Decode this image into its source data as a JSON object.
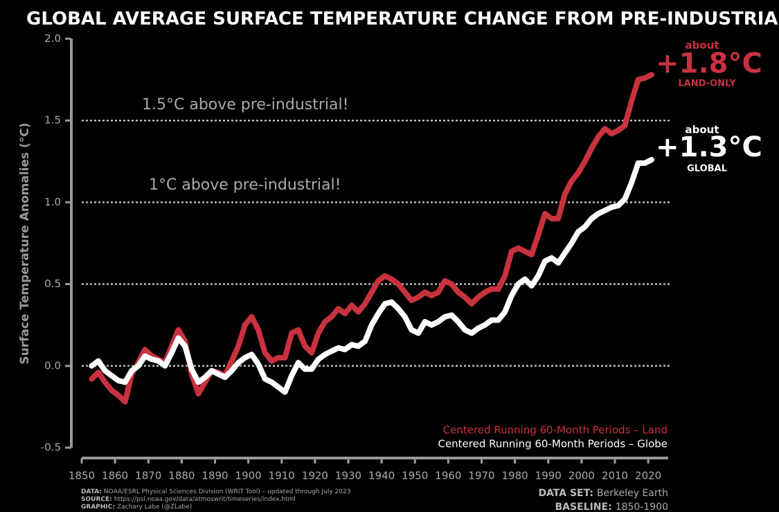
{
  "chart_data": {
    "type": "line",
    "title": "GLOBAL AVERAGE SURFACE TEMPERATURE CHANGE FROM PRE-INDUSTRIAL",
    "y_label": "Surface Temperature Anomalies (°C)",
    "xlim": [
      1850,
      2026
    ],
    "xticks": [
      1850,
      1860,
      1870,
      1880,
      1890,
      1900,
      1910,
      1920,
      1930,
      1940,
      1950,
      1960,
      1970,
      1980,
      1990,
      2000,
      2010,
      2020
    ],
    "ylim": [
      -0.5,
      2.0
    ],
    "yticks": [
      -0.5,
      {
        "value": 0,
        "label": "0.0"
      },
      0.5,
      {
        "value": 1,
        "label": "1.0"
      },
      1.5,
      {
        "value": 2,
        "label": "2.0"
      }
    ],
    "grid": true,
    "annotations": [
      "1.5°C above pre-industrial!",
      "1°C above pre-industrial!"
    ],
    "end_labels": [
      {
        "prefix": "about",
        "value": "+1.8°C",
        "note": "LAND-ONLY"
      },
      {
        "prefix": "about",
        "value": "+1.3°C",
        "note": "GLOBAL"
      }
    ],
    "x": [
      1853,
      1855,
      1857,
      1859,
      1861,
      1863,
      1865,
      1867,
      1869,
      1871,
      1873,
      1875,
      1877,
      1879,
      1881,
      1883,
      1885,
      1887,
      1889,
      1891,
      1893,
      1895,
      1897,
      1899,
      1901,
      1903,
      1905,
      1907,
      1909,
      1911,
      1913,
      1915,
      1917,
      1919,
      1921,
      1923,
      1925,
      1927,
      1929,
      1931,
      1933,
      1935,
      1937,
      1939,
      1941,
      1943,
      1945,
      1947,
      1949,
      1951,
      1953,
      1955,
      1957,
      1959,
      1961,
      1963,
      1965,
      1967,
      1969,
      1971,
      1973,
      1975,
      1977,
      1979,
      1981,
      1983,
      1985,
      1987,
      1989,
      1991,
      1993,
      1995,
      1997,
      1999,
      2001,
      2003,
      2005,
      2007,
      2009,
      2011,
      2013,
      2015,
      2017,
      2019,
      2021
    ],
    "series": [
      {
        "name": "Centered Running 60-Month Periods – Land",
        "color": "#c8323f",
        "values": [
          -0.08,
          -0.04,
          -0.1,
          -0.15,
          -0.18,
          -0.22,
          -0.05,
          0.02,
          0.1,
          0.06,
          0.04,
          0.02,
          0.12,
          0.22,
          0.15,
          -0.05,
          -0.17,
          -0.1,
          -0.03,
          -0.04,
          -0.06,
          0.03,
          0.12,
          0.25,
          0.3,
          0.22,
          0.08,
          0.03,
          0.05,
          0.05,
          0.2,
          0.22,
          0.12,
          0.08,
          0.2,
          0.27,
          0.3,
          0.35,
          0.32,
          0.37,
          0.33,
          0.38,
          0.45,
          0.52,
          0.55,
          0.53,
          0.5,
          0.45,
          0.4,
          0.42,
          0.45,
          0.43,
          0.45,
          0.52,
          0.5,
          0.45,
          0.42,
          0.38,
          0.42,
          0.45,
          0.47,
          0.47,
          0.55,
          0.7,
          0.72,
          0.7,
          0.68,
          0.8,
          0.93,
          0.9,
          0.9,
          1.05,
          1.13,
          1.18,
          1.25,
          1.33,
          1.4,
          1.45,
          1.42,
          1.44,
          1.47,
          1.62,
          1.75,
          1.76,
          1.78
        ]
      },
      {
        "name": "Centered Running 60-Month Periods – Globe",
        "color": "#ffffff",
        "values": [
          0.0,
          0.03,
          -0.03,
          -0.06,
          -0.09,
          -0.1,
          -0.03,
          0.0,
          0.06,
          0.04,
          0.03,
          0.0,
          0.08,
          0.17,
          0.12,
          -0.02,
          -0.1,
          -0.07,
          -0.03,
          -0.05,
          -0.07,
          -0.03,
          0.02,
          0.05,
          0.07,
          0.01,
          -0.08,
          -0.1,
          -0.13,
          -0.16,
          -0.06,
          0.02,
          -0.02,
          -0.02,
          0.04,
          0.07,
          0.09,
          0.11,
          0.1,
          0.13,
          0.12,
          0.15,
          0.25,
          0.32,
          0.38,
          0.39,
          0.35,
          0.3,
          0.22,
          0.2,
          0.27,
          0.25,
          0.27,
          0.3,
          0.31,
          0.27,
          0.22,
          0.2,
          0.23,
          0.25,
          0.28,
          0.28,
          0.33,
          0.43,
          0.5,
          0.53,
          0.49,
          0.55,
          0.64,
          0.66,
          0.63,
          0.69,
          0.75,
          0.82,
          0.85,
          0.9,
          0.93,
          0.95,
          0.97,
          0.98,
          1.02,
          1.12,
          1.24,
          1.24,
          1.26
        ]
      }
    ],
    "footer_left": [
      {
        "label": "DATA:",
        "text": "NOAA/ESRL Physical Sciences Division (WRIT Tool) – updated through July 2023"
      },
      {
        "label": "SOURCE:",
        "text": "https://psl.noaa.gov/data/atmoswrit/timeseries/index.html"
      },
      {
        "label": "GRAPHIC:",
        "text": "Zachary Labe (@ZLabe)"
      }
    ],
    "footer_right": [
      {
        "label": "DATA SET:",
        "text": "Berkeley Earth"
      },
      {
        "label": "BASELINE:",
        "text": "1850-1900"
      }
    ]
  }
}
